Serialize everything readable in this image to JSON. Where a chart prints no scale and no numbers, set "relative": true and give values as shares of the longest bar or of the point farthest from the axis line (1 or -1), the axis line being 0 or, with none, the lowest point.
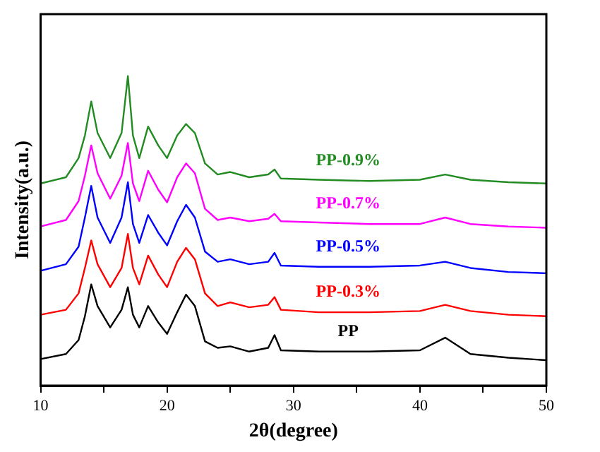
{
  "chart_data": {
    "type": "line",
    "relative": true,
    "xlabel": "2θ(degree)",
    "ylabel": "Intensity(a.u.)",
    "xlim": [
      10,
      50
    ],
    "xticks": [
      10,
      {
        "value": 15,
        "label": null
      },
      20,
      {
        "value": 25,
        "label": null
      },
      30,
      {
        "value": 35,
        "label": null
      },
      40,
      {
        "value": 45,
        "label": null
      },
      50
    ],
    "grid": false,
    "legend": false,
    "marker": "none",
    "line_style": "solid",
    "x": [
      10,
      12,
      13,
      13.5,
      14,
      14.5,
      15.5,
      16.4,
      16.9,
      17.3,
      17.8,
      18.5,
      19.3,
      20,
      20.8,
      21.5,
      22.2,
      23,
      24,
      25,
      26.5,
      28,
      28.5,
      29,
      32,
      36,
      40,
      42,
      44,
      47,
      50
    ],
    "series": [
      {
        "name": "PP",
        "color": "#000000",
        "values": [
          0.086,
          0.102,
          0.147,
          0.224,
          0.327,
          0.257,
          0.188,
          0.245,
          0.318,
          0.229,
          0.188,
          0.257,
          0.204,
          0.167,
          0.237,
          0.294,
          0.257,
          0.143,
          0.122,
          0.127,
          0.11,
          0.122,
          0.163,
          0.114,
          0.11,
          0.11,
          0.114,
          0.155,
          0.102,
          0.09,
          0.082
        ]
      },
      {
        "name": "PP-0.3%",
        "color": "#ff0000",
        "values": [
          0.229,
          0.245,
          0.298,
          0.38,
          0.469,
          0.392,
          0.318,
          0.38,
          0.49,
          0.38,
          0.327,
          0.42,
          0.359,
          0.318,
          0.4,
          0.445,
          0.408,
          0.298,
          0.257,
          0.269,
          0.253,
          0.261,
          0.286,
          0.245,
          0.237,
          0.237,
          0.241,
          0.261,
          0.241,
          0.229,
          0.224
        ]
      },
      {
        "name": "PP-0.5%",
        "color": "#0000ff",
        "values": [
          0.371,
          0.392,
          0.449,
          0.543,
          0.645,
          0.543,
          0.461,
          0.543,
          0.657,
          0.522,
          0.461,
          0.551,
          0.494,
          0.453,
          0.531,
          0.584,
          0.543,
          0.433,
          0.4,
          0.408,
          0.392,
          0.4,
          0.429,
          0.388,
          0.384,
          0.384,
          0.388,
          0.4,
          0.38,
          0.367,
          0.363
        ]
      },
      {
        "name": "PP-0.7%",
        "color": "#ff00ff",
        "values": [
          0.514,
          0.535,
          0.596,
          0.678,
          0.776,
          0.686,
          0.604,
          0.678,
          0.784,
          0.653,
          0.596,
          0.694,
          0.633,
          0.592,
          0.673,
          0.718,
          0.686,
          0.571,
          0.535,
          0.543,
          0.531,
          0.539,
          0.555,
          0.531,
          0.527,
          0.522,
          0.522,
          0.543,
          0.522,
          0.514,
          0.51
        ]
      },
      {
        "name": "PP-0.9%",
        "color": "#228b22",
        "values": [
          0.653,
          0.673,
          0.735,
          0.808,
          0.918,
          0.816,
          0.735,
          0.816,
          1,
          0.808,
          0.735,
          0.837,
          0.776,
          0.735,
          0.808,
          0.845,
          0.816,
          0.718,
          0.682,
          0.69,
          0.673,
          0.682,
          0.698,
          0.669,
          0.665,
          0.661,
          0.665,
          0.682,
          0.665,
          0.657,
          0.653
        ]
      }
    ]
  }
}
